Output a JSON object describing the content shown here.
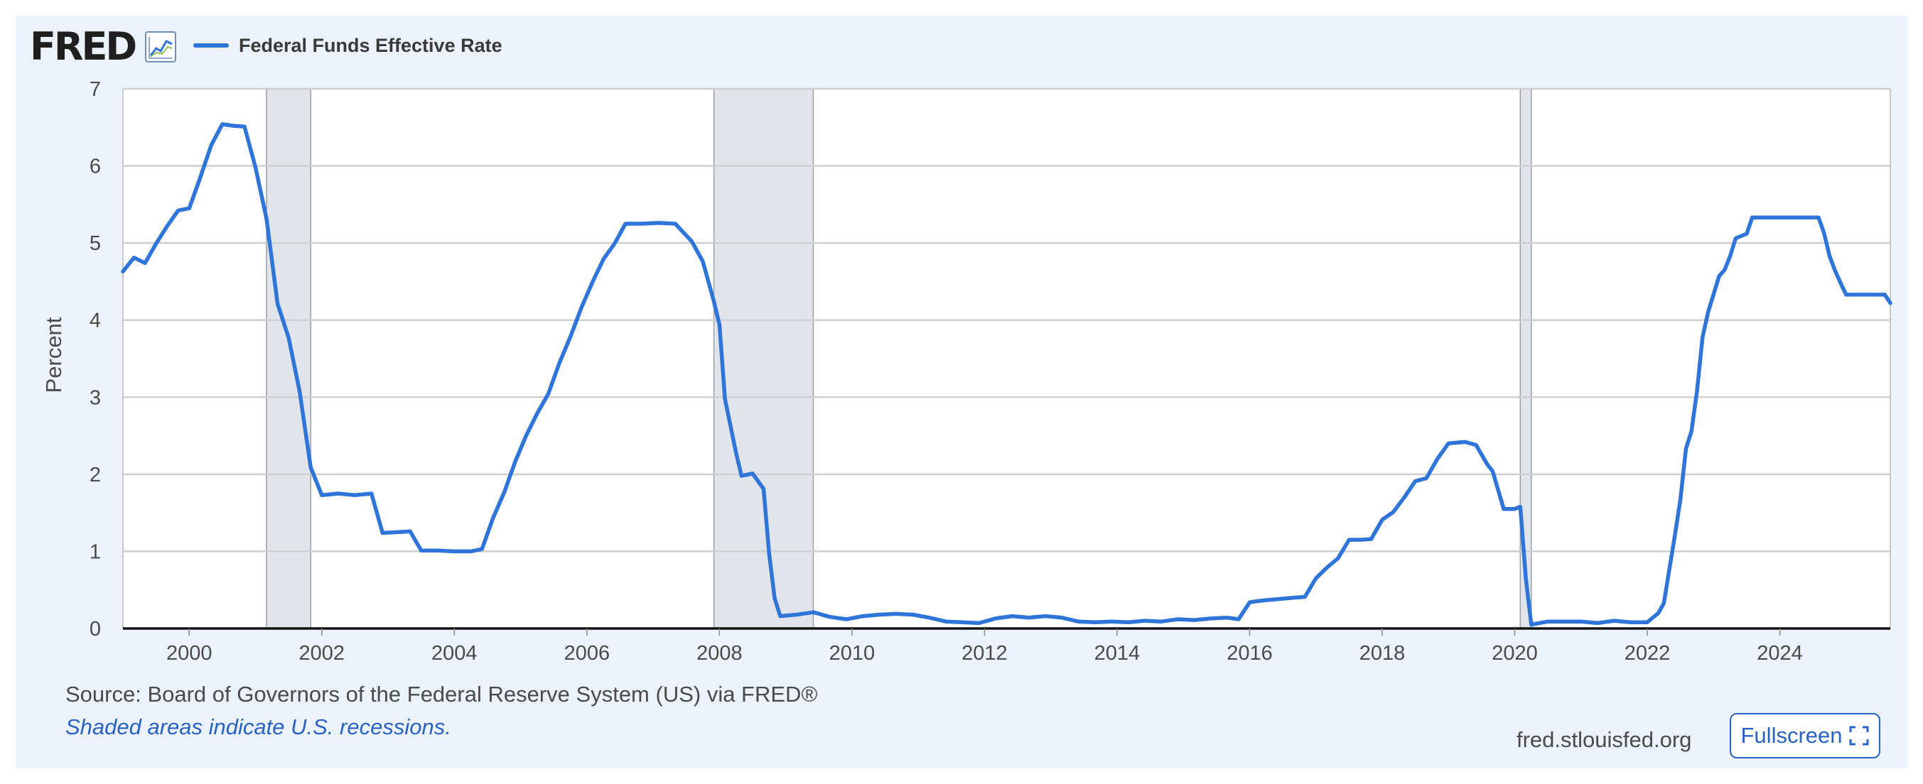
{
  "brand": {
    "logo_text": "FRED"
  },
  "colors": {
    "accent": "#2f74d9",
    "recession": "#e1e5eb",
    "frame": "#ebf2fa",
    "link": "#2a62c4"
  },
  "footer": {
    "source": "Source: Board of Governors of the Federal Reserve System (US) via FRED®",
    "note": "Shaded areas indicate U.S. recessions.",
    "site": "fred.stlouisfed.org",
    "fullscreen_label": "Fullscreen"
  },
  "icons": {
    "chart": "line-chart-icon",
    "fullscreen": "expand-icon"
  },
  "chart_data": {
    "type": "line",
    "title": "",
    "xlabel": "",
    "ylabel": "Percent",
    "xlim": [
      "1999-01",
      "2025-09"
    ],
    "ylim": [
      0,
      7
    ],
    "yticks": [
      0,
      1,
      2,
      3,
      4,
      5,
      6,
      7
    ],
    "xticks": [
      "2000",
      "2002",
      "2004",
      "2006",
      "2008",
      "2010",
      "2012",
      "2014",
      "2016",
      "2018",
      "2020",
      "2022",
      "2024"
    ],
    "grid": true,
    "legend_position": "top-left",
    "recessions": [
      {
        "start": "2001-03",
        "end": "2001-11"
      },
      {
        "start": "2007-12",
        "end": "2009-06"
      },
      {
        "start": "2020-02",
        "end": "2020-04"
      }
    ],
    "series": [
      {
        "name": "Federal Funds Effective Rate",
        "points": [
          [
            "1999-01",
            4.63
          ],
          [
            "1999-03",
            4.81
          ],
          [
            "1999-05",
            4.74
          ],
          [
            "1999-07",
            4.99
          ],
          [
            "1999-09",
            5.22
          ],
          [
            "1999-11",
            5.42
          ],
          [
            "2000-01",
            5.45
          ],
          [
            "2000-03",
            5.85
          ],
          [
            "2000-05",
            6.27
          ],
          [
            "2000-07",
            6.54
          ],
          [
            "2000-09",
            6.52
          ],
          [
            "2000-11",
            6.51
          ],
          [
            "2001-01",
            5.98
          ],
          [
            "2001-03",
            5.31
          ],
          [
            "2001-05",
            4.21
          ],
          [
            "2001-07",
            3.77
          ],
          [
            "2001-09",
            3.07
          ],
          [
            "2001-11",
            2.09
          ],
          [
            "2002-01",
            1.73
          ],
          [
            "2002-04",
            1.75
          ],
          [
            "2002-07",
            1.73
          ],
          [
            "2002-10",
            1.75
          ],
          [
            "2002-12",
            1.24
          ],
          [
            "2003-03",
            1.25
          ],
          [
            "2003-05",
            1.26
          ],
          [
            "2003-07",
            1.01
          ],
          [
            "2003-10",
            1.01
          ],
          [
            "2004-01",
            1.0
          ],
          [
            "2004-04",
            1.0
          ],
          [
            "2004-06",
            1.03
          ],
          [
            "2004-08",
            1.43
          ],
          [
            "2004-10",
            1.76
          ],
          [
            "2004-12",
            2.16
          ],
          [
            "2005-02",
            2.5
          ],
          [
            "2005-04",
            2.79
          ],
          [
            "2005-06",
            3.04
          ],
          [
            "2005-08",
            3.44
          ],
          [
            "2005-10",
            3.78
          ],
          [
            "2005-12",
            4.16
          ],
          [
            "2006-02",
            4.49
          ],
          [
            "2006-04",
            4.79
          ],
          [
            "2006-06",
            4.99
          ],
          [
            "2006-08",
            5.25
          ],
          [
            "2006-11",
            5.25
          ],
          [
            "2007-02",
            5.26
          ],
          [
            "2007-05",
            5.25
          ],
          [
            "2007-08",
            5.02
          ],
          [
            "2007-10",
            4.76
          ],
          [
            "2007-12",
            4.24
          ],
          [
            "2008-01",
            3.94
          ],
          [
            "2008-02",
            2.98
          ],
          [
            "2008-04",
            2.28
          ],
          [
            "2008-05",
            1.98
          ],
          [
            "2008-07",
            2.01
          ],
          [
            "2008-09",
            1.81
          ],
          [
            "2008-10",
            0.97
          ],
          [
            "2008-11",
            0.39
          ],
          [
            "2008-12",
            0.16
          ],
          [
            "2009-03",
            0.18
          ],
          [
            "2009-06",
            0.21
          ],
          [
            "2009-09",
            0.15
          ],
          [
            "2009-12",
            0.12
          ],
          [
            "2010-03",
            0.16
          ],
          [
            "2010-06",
            0.18
          ],
          [
            "2010-09",
            0.19
          ],
          [
            "2010-12",
            0.18
          ],
          [
            "2011-03",
            0.14
          ],
          [
            "2011-06",
            0.09
          ],
          [
            "2011-09",
            0.08
          ],
          [
            "2011-12",
            0.07
          ],
          [
            "2012-03",
            0.13
          ],
          [
            "2012-06",
            0.16
          ],
          [
            "2012-09",
            0.14
          ],
          [
            "2012-12",
            0.16
          ],
          [
            "2013-03",
            0.14
          ],
          [
            "2013-06",
            0.09
          ],
          [
            "2013-09",
            0.08
          ],
          [
            "2013-12",
            0.09
          ],
          [
            "2014-03",
            0.08
          ],
          [
            "2014-06",
            0.1
          ],
          [
            "2014-09",
            0.09
          ],
          [
            "2014-12",
            0.12
          ],
          [
            "2015-03",
            0.11
          ],
          [
            "2015-06",
            0.13
          ],
          [
            "2015-09",
            0.14
          ],
          [
            "2015-11",
            0.12
          ],
          [
            "2016-01",
            0.34
          ],
          [
            "2016-03",
            0.36
          ],
          [
            "2016-06",
            0.38
          ],
          [
            "2016-09",
            0.4
          ],
          [
            "2016-11",
            0.41
          ],
          [
            "2017-01",
            0.65
          ],
          [
            "2017-03",
            0.79
          ],
          [
            "2017-05",
            0.91
          ],
          [
            "2017-07",
            1.15
          ],
          [
            "2017-09",
            1.15
          ],
          [
            "2017-11",
            1.16
          ],
          [
            "2018-01",
            1.41
          ],
          [
            "2018-03",
            1.51
          ],
          [
            "2018-05",
            1.7
          ],
          [
            "2018-07",
            1.91
          ],
          [
            "2018-09",
            1.95
          ],
          [
            "2018-11",
            2.2
          ],
          [
            "2019-01",
            2.4
          ],
          [
            "2019-04",
            2.42
          ],
          [
            "2019-06",
            2.38
          ],
          [
            "2019-08",
            2.13
          ],
          [
            "2019-09",
            2.04
          ],
          [
            "2019-11",
            1.55
          ],
          [
            "2020-01",
            1.55
          ],
          [
            "2020-02",
            1.58
          ],
          [
            "2020-03",
            0.65
          ],
          [
            "2020-04",
            0.05
          ],
          [
            "2020-07",
            0.09
          ],
          [
            "2020-10",
            0.09
          ],
          [
            "2021-01",
            0.09
          ],
          [
            "2021-04",
            0.07
          ],
          [
            "2021-07",
            0.1
          ],
          [
            "2021-10",
            0.08
          ],
          [
            "2022-01",
            0.08
          ],
          [
            "2022-03",
            0.2
          ],
          [
            "2022-04",
            0.33
          ],
          [
            "2022-05",
            0.77
          ],
          [
            "2022-06",
            1.21
          ],
          [
            "2022-07",
            1.68
          ],
          [
            "2022-08",
            2.33
          ],
          [
            "2022-09",
            2.56
          ],
          [
            "2022-10",
            3.08
          ],
          [
            "2022-11",
            3.78
          ],
          [
            "2022-12",
            4.1
          ],
          [
            "2023-02",
            4.57
          ],
          [
            "2023-03",
            4.65
          ],
          [
            "2023-04",
            4.83
          ],
          [
            "2023-05",
            5.06
          ],
          [
            "2023-07",
            5.12
          ],
          [
            "2023-08",
            5.33
          ],
          [
            "2024-02",
            5.33
          ],
          [
            "2024-08",
            5.33
          ],
          [
            "2024-09",
            5.13
          ],
          [
            "2024-10",
            4.83
          ],
          [
            "2024-11",
            4.64
          ],
          [
            "2024-12",
            4.48
          ],
          [
            "2025-01",
            4.33
          ],
          [
            "2025-08",
            4.33
          ],
          [
            "2025-09",
            4.22
          ]
        ]
      }
    ]
  }
}
